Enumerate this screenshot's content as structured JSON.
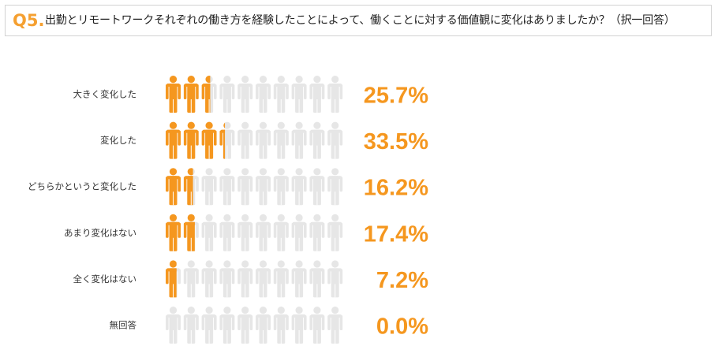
{
  "question": {
    "number": "Q5.",
    "text": "出勤とリモートワークそれぞれの働き方を経験したことによって、働くことに対する価値観に変化はありましたか？（択一回答）"
  },
  "colors": {
    "filled": "#f5971f",
    "empty": "#e6e6e6",
    "percent_text": "#f5971f",
    "label_text": "#333333",
    "qnum_text": "#f5a031"
  },
  "chart_data": {
    "type": "pictograph",
    "icons_per_row": 10,
    "units_per_icon": 10,
    "unit": "%",
    "categories": [
      "大きく変化した",
      "変化した",
      "どちらかというと変化した",
      "あまり変化はない",
      "全く変化はない",
      "無回答"
    ],
    "values": [
      25.7,
      33.5,
      16.2,
      17.4,
      7.2,
      0.0
    ],
    "value_labels": [
      "25.7%",
      "33.5%",
      "16.2%",
      "17.4%",
      "7.2%",
      "0.0%"
    ]
  }
}
